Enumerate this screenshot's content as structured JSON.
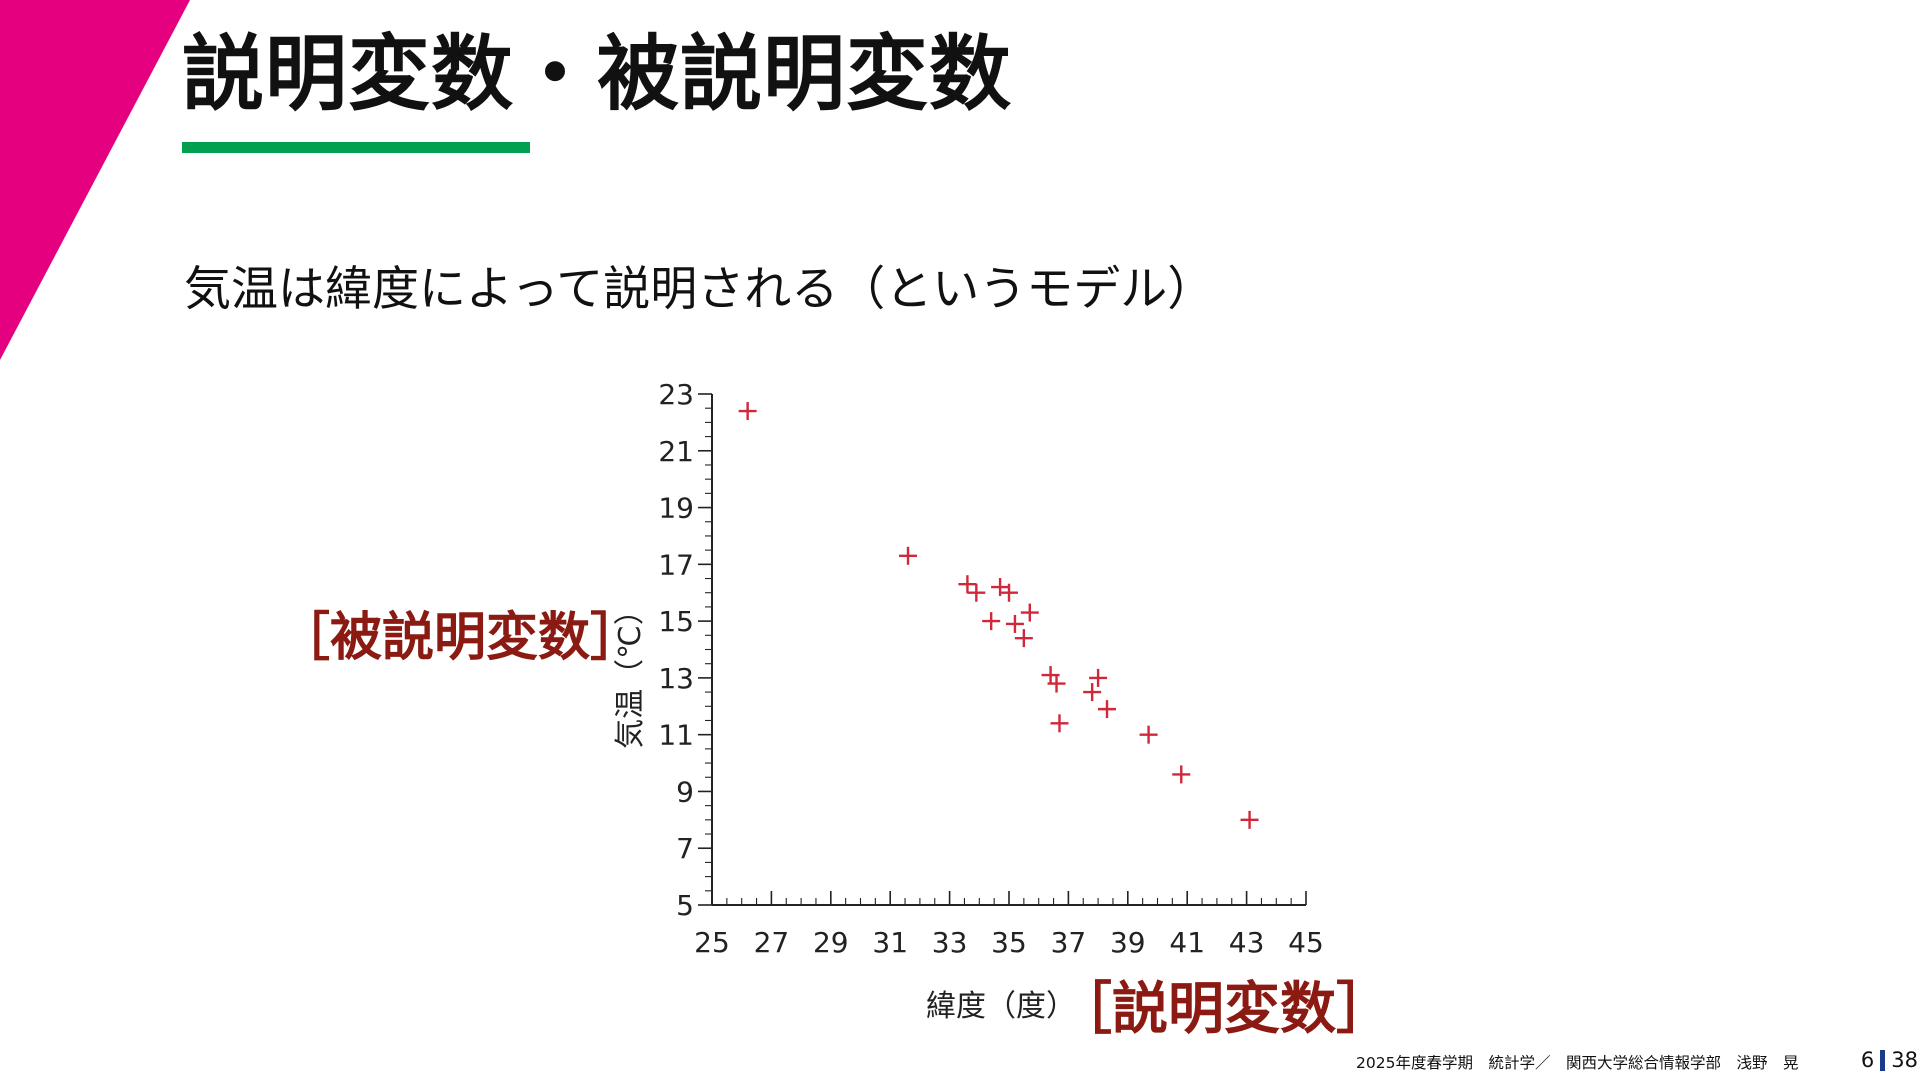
{
  "slide": {
    "title": "説明変数・被説明変数",
    "subtitle": "気温は緯度によって説明される（というモデル）",
    "dependent_tag": "［被説明変数］",
    "independent_tag": "［説明変数］",
    "footer": "2025年度春学期　統計学／　関西大学総合情報学部　浅野　晃",
    "page_current": "6",
    "page_total": "38"
  },
  "colors": {
    "accent_corner": "#e4007f",
    "title_underline": "#00a050",
    "tag_text": "#8b1a12",
    "marker": "#d0283a",
    "page_divider": "#1a3a8c"
  },
  "chart_data": {
    "type": "scatter",
    "title": "",
    "xlabel": "緯度（度）",
    "ylabel": "気温（℃）",
    "xlim": [
      25,
      45
    ],
    "ylim": [
      5,
      23
    ],
    "xticks": [
      25,
      27,
      29,
      31,
      33,
      35,
      37,
      39,
      41,
      43,
      45
    ],
    "yticks": [
      5,
      7,
      9,
      11,
      13,
      15,
      17,
      19,
      21,
      23
    ],
    "grid": false,
    "legend": "none",
    "marker": "plus",
    "points": [
      {
        "x": 26.2,
        "y": 22.4
      },
      {
        "x": 31.6,
        "y": 17.3
      },
      {
        "x": 33.6,
        "y": 16.3
      },
      {
        "x": 33.9,
        "y": 16.0
      },
      {
        "x": 34.7,
        "y": 16.2
      },
      {
        "x": 35.0,
        "y": 16.0
      },
      {
        "x": 34.4,
        "y": 15.0
      },
      {
        "x": 35.2,
        "y": 14.9
      },
      {
        "x": 35.7,
        "y": 15.3
      },
      {
        "x": 35.5,
        "y": 14.4
      },
      {
        "x": 36.4,
        "y": 13.1
      },
      {
        "x": 36.6,
        "y": 12.8
      },
      {
        "x": 36.7,
        "y": 11.4
      },
      {
        "x": 38.0,
        "y": 13.0
      },
      {
        "x": 37.8,
        "y": 12.5
      },
      {
        "x": 38.3,
        "y": 11.9
      },
      {
        "x": 39.7,
        "y": 11.0
      },
      {
        "x": 40.8,
        "y": 9.6
      },
      {
        "x": 43.1,
        "y": 8.0
      }
    ]
  }
}
